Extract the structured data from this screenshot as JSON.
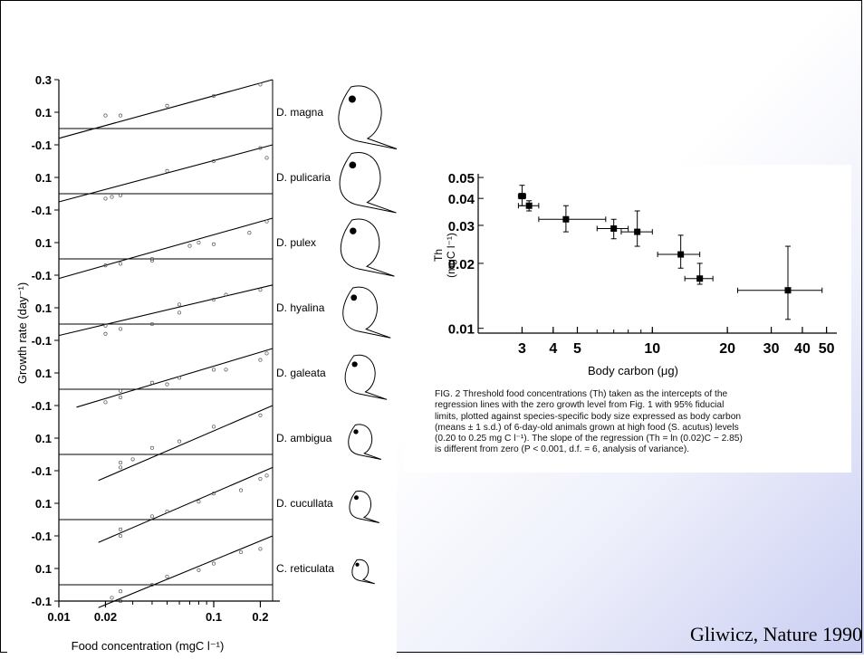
{
  "left_figure": {
    "ylabel": "Growth rate (day⁻¹)",
    "xlabel": "Food concentration (mgC l⁻¹)",
    "x_ticks": [
      "0.01",
      "0.02",
      "0.1",
      "0.2"
    ],
    "x_tick_values": [
      0.01,
      0.02,
      0.1,
      0.2
    ],
    "xlim": [
      0.01,
      0.24
    ],
    "y_ticks_first_panel": [
      "0.3",
      "0.1",
      "-0.1"
    ],
    "y_ticks_panel": [
      "0.1",
      "-0.1"
    ]
  },
  "right_figure": {
    "ylabel": "Th",
    "ylabel_unit": "(mgC l⁻¹)",
    "xlabel": "Body carbon (μg)",
    "y_ticks": [
      "0.05",
      "0.04",
      "0.03",
      "0.02",
      "0.01"
    ],
    "x_ticks": [
      "3",
      "4",
      "5",
      "10",
      "20",
      "30",
      "40",
      "50"
    ]
  },
  "caption_lines": [
    "FIG. 2 Threshold food concentrations (Th) taken as the intercepts of the",
    "regression lines with the zero growth level from Fig. 1 with 95% fiducial",
    "limits, plotted against species-specific body size expressed as body carbon",
    "(means ± 1 s.d.) of 6-day-old animals grown at high food (S. acutus) levels",
    "(0.20 to 0.25 mg C l⁻¹). The slope of the regression (Th = ln (0.02)C − 2.85)",
    "is different from zero (P < 0.001, d.f. = 6, analysis of variance)."
  ],
  "credit": "Gliwicz, Nature 1990",
  "chart_data": [
    {
      "type": "line",
      "x_scale": "log",
      "xlabel": "Food concentration (mgC l⁻¹)",
      "ylabel": "Growth rate (day⁻¹)",
      "panels": [
        {
          "name": "D. magna",
          "ylim": [
            -0.1,
            0.3
          ],
          "y_ticks": [
            0.3,
            0.1,
            -0.1
          ],
          "line": {
            "x": [
              0.01,
              0.24
            ],
            "y": [
              -0.06,
              0.3
            ]
          },
          "points": {
            "x": [
              0.02,
              0.025,
              0.05,
              0.1,
              0.2
            ],
            "y": [
              0.08,
              0.08,
              0.14,
              0.2,
              0.27
            ]
          }
        },
        {
          "name": "D. pulicaria",
          "ylim": [
            -0.1,
            0.3
          ],
          "y_ticks": [
            0.1,
            -0.1
          ],
          "line": {
            "x": [
              0.01,
              0.24
            ],
            "y": [
              -0.05,
              0.3
            ]
          },
          "points": {
            "x": [
              0.02,
              0.022,
              0.025,
              0.05,
              0.1,
              0.2,
              0.22
            ],
            "y": [
              -0.03,
              -0.02,
              -0.01,
              0.14,
              0.2,
              0.28,
              0.22
            ]
          }
        },
        {
          "name": "D. pulex",
          "ylim": [
            -0.1,
            0.3
          ],
          "y_ticks": [
            0.1,
            -0.1
          ],
          "line": {
            "x": [
              0.01,
              0.24
            ],
            "y": [
              -0.12,
              0.25
            ]
          },
          "points": {
            "x": [
              0.02,
              0.025,
              0.04,
              0.04,
              0.07,
              0.08,
              0.1,
              0.17,
              0.22
            ],
            "y": [
              -0.04,
              -0.03,
              -0.01,
              0.0,
              0.08,
              0.1,
              0.09,
              0.16,
              0.23
            ]
          }
        },
        {
          "name": "D. hyalina",
          "ylim": [
            -0.1,
            0.3
          ],
          "y_ticks": [
            0.1,
            -0.1
          ],
          "line": {
            "x": [
              0.01,
              0.24
            ],
            "y": [
              -0.07,
              0.24
            ]
          },
          "points": {
            "x": [
              0.02,
              0.02,
              0.025,
              0.04,
              0.06,
              0.06,
              0.1,
              0.12,
              0.2
            ],
            "y": [
              -0.01,
              -0.06,
              -0.03,
              0.0,
              0.12,
              0.07,
              0.15,
              0.18,
              0.21
            ]
          }
        },
        {
          "name": "D. galeata",
          "ylim": [
            -0.1,
            0.3
          ],
          "y_ticks": [
            0.1,
            -0.1
          ],
          "line": {
            "x": [
              0.013,
              0.24
            ],
            "y": [
              -0.11,
              0.25
            ]
          },
          "points": {
            "x": [
              0.02,
              0.025,
              0.025,
              0.04,
              0.05,
              0.06,
              0.1,
              0.12,
              0.2,
              0.22
            ],
            "y": [
              -0.08,
              -0.05,
              -0.01,
              0.04,
              0.03,
              0.07,
              0.12,
              0.12,
              0.18,
              0.22
            ]
          }
        },
        {
          "name": "D. ambigua",
          "ylim": [
            -0.1,
            0.3
          ],
          "y_ticks": [
            0.1,
            -0.1
          ],
          "line": {
            "x": [
              0.018,
              0.24
            ],
            "y": [
              -0.16,
              0.3
            ]
          },
          "points": {
            "x": [
              0.025,
              0.025,
              0.03,
              0.04,
              0.06,
              0.1,
              0.2
            ],
            "y": [
              -0.08,
              -0.05,
              -0.03,
              0.04,
              0.08,
              0.17,
              0.24
            ]
          }
        },
        {
          "name": "D. cucullata",
          "ylim": [
            -0.1,
            0.3
          ],
          "y_ticks": [
            0.1,
            -0.1
          ],
          "line": {
            "x": [
              0.018,
              0.24
            ],
            "y": [
              -0.14,
              0.32
            ]
          },
          "points": {
            "x": [
              0.025,
              0.025,
              0.04,
              0.05,
              0.08,
              0.1,
              0.15,
              0.2,
              0.22
            ],
            "y": [
              -0.06,
              -0.1,
              0.02,
              0.05,
              0.11,
              0.16,
              0.18,
              0.25,
              0.27
            ]
          }
        },
        {
          "name": "C. reticulata",
          "ylim": [
            -0.1,
            0.3
          ],
          "y_ticks": [
            0.1,
            -0.1
          ],
          "line": {
            "x": [
              0.018,
              0.24
            ],
            "y": [
              -0.14,
              0.3
            ]
          },
          "points": {
            "x": [
              0.022,
              0.025,
              0.025,
              0.04,
              0.05,
              0.08,
              0.1,
              0.15,
              0.2
            ],
            "y": [
              -0.08,
              -0.1,
              -0.04,
              0.0,
              0.05,
              0.09,
              0.13,
              0.2,
              0.22
            ]
          }
        }
      ]
    },
    {
      "type": "scatter",
      "x_scale": "log",
      "y_scale": "log",
      "xlabel": "Body carbon (μg)",
      "ylabel": "Th (mgC l⁻¹)",
      "xlim": [
        2,
        55
      ],
      "ylim": [
        0.0095,
        0.052
      ],
      "points": [
        {
          "x": 3.0,
          "y": 0.041,
          "xerr": [
            2.9,
            3.1
          ],
          "yerr": [
            0.037,
            0.046
          ]
        },
        {
          "x": 3.2,
          "y": 0.037,
          "xerr": [
            2.9,
            3.5
          ],
          "yerr": [
            0.035,
            0.039
          ]
        },
        {
          "x": 4.5,
          "y": 0.032,
          "xerr": [
            3.5,
            6.5
          ],
          "yerr": [
            0.028,
            0.037
          ]
        },
        {
          "x": 7.0,
          "y": 0.029,
          "xerr": [
            6.0,
            8.0
          ],
          "yerr": [
            0.026,
            0.032
          ]
        },
        {
          "x": 8.7,
          "y": 0.028,
          "xerr": [
            7.5,
            10.0
          ],
          "yerr": [
            0.024,
            0.035
          ]
        },
        {
          "x": 13.0,
          "y": 0.022,
          "xerr": [
            10.5,
            15.5
          ],
          "yerr": [
            0.019,
            0.027
          ]
        },
        {
          "x": 15.5,
          "y": 0.017,
          "xerr": [
            13.5,
            17.5
          ],
          "yerr": [
            0.016,
            0.02
          ]
        },
        {
          "x": 35.0,
          "y": 0.015,
          "xerr": [
            22.0,
            48.0
          ],
          "yerr": [
            0.011,
            0.024
          ]
        }
      ]
    }
  ]
}
